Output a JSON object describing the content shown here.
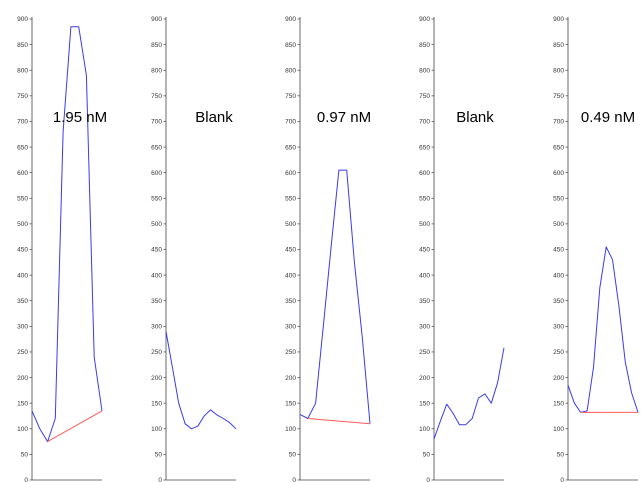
{
  "colors": {
    "trace": "#3a3af0",
    "baseline": "#ff5a5a",
    "axis": "#444444",
    "text": "#000000"
  },
  "chart_data": [
    {
      "type": "line",
      "title": "1.95 nM",
      "ylim": [
        0,
        900
      ],
      "yticks": [
        0,
        50,
        100,
        150,
        200,
        250,
        300,
        350,
        400,
        450,
        500,
        550,
        600,
        650,
        700,
        750,
        800,
        850,
        900
      ],
      "grid": false,
      "series": [
        {
          "values": [
            [
              0,
              135
            ],
            [
              1,
              100
            ],
            [
              2,
              75
            ],
            [
              3,
              120
            ],
            [
              4,
              680
            ],
            [
              5,
              885
            ],
            [
              6,
              885
            ],
            [
              7,
              790
            ],
            [
              8,
              240
            ],
            [
              9,
              135
            ]
          ]
        },
        {
          "values": [
            [
              2,
              75
            ],
            [
              9,
              135
            ]
          ]
        }
      ]
    },
    {
      "type": "line",
      "title": "Blank",
      "ylim": [
        0,
        900
      ],
      "yticks": [
        0,
        50,
        100,
        150,
        200,
        250,
        300,
        350,
        400,
        450,
        500,
        550,
        600,
        650,
        700,
        750,
        800,
        850,
        900
      ],
      "grid": false,
      "series": [
        {
          "values": [
            [
              0,
              290
            ],
            [
              1,
              220
            ],
            [
              2,
              150
            ],
            [
              3,
              110
            ],
            [
              4,
              100
            ],
            [
              5,
              105
            ],
            [
              6,
              125
            ],
            [
              7,
              137
            ],
            [
              8,
              127
            ],
            [
              9,
              120
            ],
            [
              10,
              112
            ],
            [
              11,
              100
            ]
          ]
        }
      ]
    },
    {
      "type": "line",
      "title": "0.97 nM",
      "ylim": [
        0,
        900
      ],
      "yticks": [
        0,
        50,
        100,
        150,
        200,
        250,
        300,
        350,
        400,
        450,
        500,
        550,
        600,
        650,
        700,
        750,
        800,
        850,
        900
      ],
      "grid": false,
      "series": [
        {
          "values": [
            [
              0,
              128
            ],
            [
              1,
              120
            ],
            [
              2,
              150
            ],
            [
              3,
              300
            ],
            [
              4,
              455
            ],
            [
              5,
              605
            ],
            [
              6,
              605
            ],
            [
              7,
              425
            ],
            [
              8,
              280
            ],
            [
              9,
              110
            ]
          ]
        },
        {
          "values": [
            [
              1,
              120
            ],
            [
              9,
              110
            ]
          ]
        }
      ]
    },
    {
      "type": "line",
      "title": "Blank",
      "ylim": [
        0,
        900
      ],
      "yticks": [
        0,
        50,
        100,
        150,
        200,
        250,
        300,
        350,
        400,
        450,
        500,
        550,
        600,
        650,
        700,
        750,
        800,
        850,
        900
      ],
      "grid": false,
      "series": [
        {
          "values": [
            [
              0,
              80
            ],
            [
              1,
              115
            ],
            [
              2,
              148
            ],
            [
              3,
              130
            ],
            [
              4,
              108
            ],
            [
              5,
              108
            ],
            [
              6,
              120
            ],
            [
              7,
              160
            ],
            [
              8,
              168
            ],
            [
              9,
              150
            ],
            [
              10,
              190
            ],
            [
              11,
              258
            ]
          ]
        }
      ]
    },
    {
      "type": "line",
      "title": "0.49 nM",
      "ylim": [
        0,
        900
      ],
      "yticks": [
        0,
        50,
        100,
        150,
        200,
        250,
        300,
        350,
        400,
        450,
        500,
        550,
        600,
        650,
        700,
        750,
        800,
        850,
        900
      ],
      "grid": false,
      "series": [
        {
          "values": [
            [
              0,
              185
            ],
            [
              1,
              150
            ],
            [
              2,
              132
            ],
            [
              3,
              135
            ],
            [
              4,
              220
            ],
            [
              5,
              375
            ],
            [
              6,
              455
            ],
            [
              7,
              430
            ],
            [
              8,
              340
            ],
            [
              9,
              230
            ],
            [
              10,
              170
            ],
            [
              11,
              132
            ]
          ]
        },
        {
          "values": [
            [
              2,
              132
            ],
            [
              11,
              132
            ]
          ]
        }
      ]
    }
  ]
}
